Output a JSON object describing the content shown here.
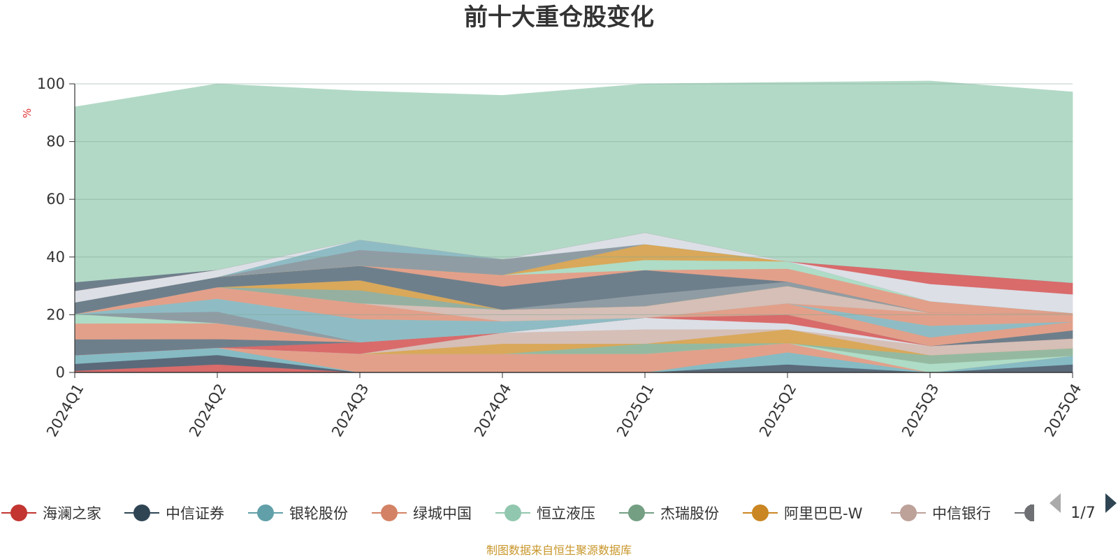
{
  "chart_data": {
    "type": "area",
    "title": "前十大重仓股变化",
    "unit_label": "%",
    "x": [
      "2024Q1",
      "2024Q2",
      "2024Q3",
      "2024Q4",
      "2025Q1",
      "2025Q2",
      "2025Q3",
      "2025Q4"
    ],
    "ylim": [
      0,
      100
    ],
    "yticks": [
      0,
      20,
      40,
      60,
      80,
      100
    ],
    "grid": true,
    "stacked": true,
    "legend_position": "bottom",
    "series": [
      {
        "name": "海澜之家",
        "color": "#d96b6b",
        "values": [
          0.6,
          2.8,
          0,
          0,
          0,
          0,
          0,
          0
        ]
      },
      {
        "name": "中信证券",
        "color": "#5a6a7a",
        "values": [
          2.4,
          3.3,
          0,
          0,
          0,
          2.8,
          0,
          2.8
        ]
      },
      {
        "name": "银轮股份",
        "color": "#86bbc4",
        "values": [
          3.0,
          2.5,
          0,
          0,
          0,
          4.2,
          0,
          3.0
        ]
      },
      {
        "name": "绿城中国",
        "color": "#e2a08a",
        "values": [
          0,
          0,
          6.5,
          6.5,
          6.5,
          3.2,
          0,
          0
        ]
      },
      {
        "name": "恒立液压",
        "color": "#aedcc6",
        "values": [
          0,
          0,
          0,
          0,
          0,
          0,
          3.0,
          0
        ]
      },
      {
        "name": "杰瑞股份",
        "color": "#95b9a0",
        "values": [
          0,
          0,
          0,
          0,
          3.5,
          0,
          3.0,
          2.6
        ]
      },
      {
        "name": "阿里巴巴-W",
        "color": "#d9a85a",
        "values": [
          0,
          0,
          0,
          3.5,
          0,
          4.8,
          0,
          0
        ]
      },
      {
        "name": "中信银行",
        "color": "#d5bfb7",
        "values": [
          0,
          0,
          0,
          3.8,
          5.0,
          0,
          3.2,
          3.4
        ]
      },
      {
        "name": "",
        "color": "#dcdfe6",
        "values": [
          0,
          0,
          0,
          0,
          4.0,
          2.0,
          0,
          0
        ]
      },
      {
        "name": "",
        "color": "#d96b6b",
        "values": [
          0,
          0,
          4.0,
          0,
          0,
          3.0,
          0,
          0
        ]
      },
      {
        "name": "",
        "color": "#6e7f8c",
        "values": [
          5.5,
          3.0,
          0,
          0,
          0,
          0,
          0,
          2.8
        ]
      },
      {
        "name": "",
        "color": "#e2a08a",
        "values": [
          5.5,
          5.5,
          0,
          0,
          0,
          4.0,
          3.0,
          3.0
        ]
      },
      {
        "name": "",
        "color": "#aedcc6",
        "values": [
          3.3,
          0,
          0,
          0,
          0,
          0,
          0,
          0
        ]
      },
      {
        "name": "",
        "color": "#909ca4",
        "values": [
          0,
          4.0,
          0,
          0,
          0,
          0,
          0,
          0
        ]
      },
      {
        "name": "",
        "color": "#8fbcc4",
        "values": [
          0,
          4.5,
          8.0,
          4.0,
          0,
          0,
          4.0,
          0
        ]
      },
      {
        "name": "",
        "color": "#e2a08a",
        "values": [
          0,
          4.0,
          5.5,
          0,
          0,
          0,
          4.5,
          3.0
        ]
      },
      {
        "name": "",
        "color": "#d5bfb7",
        "values": [
          0,
          0,
          0,
          4.0,
          4.0,
          6.0,
          0,
          0
        ]
      },
      {
        "name": "",
        "color": "#95b0a0",
        "values": [
          0,
          0,
          4.5,
          0,
          0,
          0,
          0,
          0
        ]
      },
      {
        "name": "",
        "color": "#d9a85a",
        "values": [
          0,
          0,
          3.5,
          0,
          0,
          0,
          0,
          0
        ]
      },
      {
        "name": "",
        "color": "#909ca4",
        "values": [
          0,
          0,
          0,
          0,
          4.0,
          1.5,
          0,
          0
        ]
      },
      {
        "name": "",
        "color": "#6e7f8c",
        "values": [
          4.0,
          3.5,
          5.0,
          8.0,
          8.5,
          0,
          0,
          0
        ]
      },
      {
        "name": "",
        "color": "#e2a08a",
        "values": [
          0,
          0,
          0,
          4.0,
          0,
          4.5,
          4.0,
          0
        ]
      },
      {
        "name": "",
        "color": "#aedcc6",
        "values": [
          0,
          0,
          0,
          0,
          3.5,
          2.5,
          0,
          0
        ]
      },
      {
        "name": "",
        "color": "#d9a85a",
        "values": [
          0,
          0,
          0,
          0,
          5.5,
          0,
          0,
          0
        ]
      },
      {
        "name": "",
        "color": "#909ca4",
        "values": [
          0,
          0,
          5.5,
          5.5,
          0,
          0,
          0,
          0
        ]
      },
      {
        "name": "",
        "color": "#8fbcc4",
        "values": [
          0,
          0,
          3.5,
          0,
          0,
          0,
          0,
          0
        ]
      },
      {
        "name": "",
        "color": "#dcdfe6",
        "values": [
          4.0,
          2.5,
          0,
          0,
          4.0,
          0,
          6.0,
          6.5
        ]
      },
      {
        "name": "",
        "color": "#d96b6b",
        "values": [
          0,
          0,
          0,
          0,
          0,
          0,
          4.0,
          4.0
        ]
      },
      {
        "name": "",
        "color": "#6e7f8c",
        "values": [
          3.0,
          0,
          0,
          0,
          0,
          0,
          0,
          0
        ]
      },
      {
        "name": "",
        "color": "#b2d9c6",
        "values": [
          60.7,
          64.4,
          51.5,
          56.7,
          51.5,
          62.0,
          66.3,
          66.1
        ]
      }
    ]
  },
  "legend": {
    "items": [
      {
        "name": "海澜之家",
        "color": "#c23531"
      },
      {
        "name": "中信证券",
        "color": "#2f4554"
      },
      {
        "name": "银轮股份",
        "color": "#61a0a8"
      },
      {
        "name": "绿城中国",
        "color": "#d48265"
      },
      {
        "name": "恒立液压",
        "color": "#91c7ae"
      },
      {
        "name": "杰瑞股份",
        "color": "#749f83"
      },
      {
        "name": "阿里巴巴-W",
        "color": "#ca8622"
      },
      {
        "name": "中信银行",
        "color": "#bda29a"
      }
    ],
    "partial_color": "#6e7074",
    "page_label": "1/7",
    "prev_color": "#aaaaaa",
    "next_color": "#2f4554"
  },
  "source": "制图数据来自恒生聚源数据库"
}
